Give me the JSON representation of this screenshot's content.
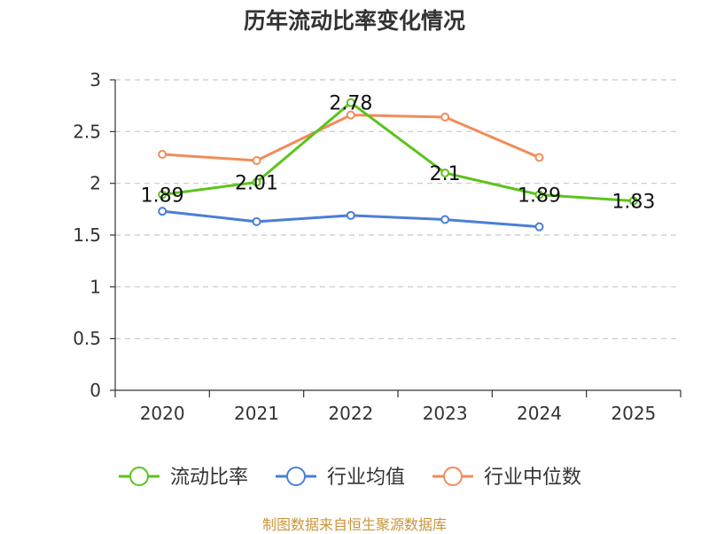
{
  "chart_data": {
    "type": "line",
    "title": "历年流动比率变化情况",
    "categories": [
      "2020",
      "2021",
      "2022",
      "2023",
      "2024",
      "2025"
    ],
    "ylim": [
      0,
      3
    ],
    "yticks": [
      "0",
      "0.5",
      "1",
      "1.5",
      "2",
      "2.5",
      "3"
    ],
    "ytick_values": [
      0,
      0.5,
      1,
      1.5,
      2,
      2.5,
      3
    ],
    "grid": "horizontal dashed",
    "legend_position": "bottom-center",
    "series": [
      {
        "name": "流动比率",
        "color": "#5cc41c",
        "values": [
          1.89,
          2.01,
          2.78,
          2.1,
          1.89,
          1.83
        ],
        "labels": [
          "1.89",
          "2.01",
          "2.78",
          "2.1",
          "1.89",
          "1.83"
        ]
      },
      {
        "name": "行业均值",
        "color": "#4a7fd8",
        "values": [
          1.73,
          1.63,
          1.69,
          1.65,
          1.58,
          null
        ]
      },
      {
        "name": "行业中位数",
        "color": "#f28c5a",
        "values": [
          2.28,
          2.22,
          2.66,
          2.64,
          2.25,
          null
        ]
      }
    ]
  },
  "source_note": "制图数据来自恒生聚源数据库"
}
